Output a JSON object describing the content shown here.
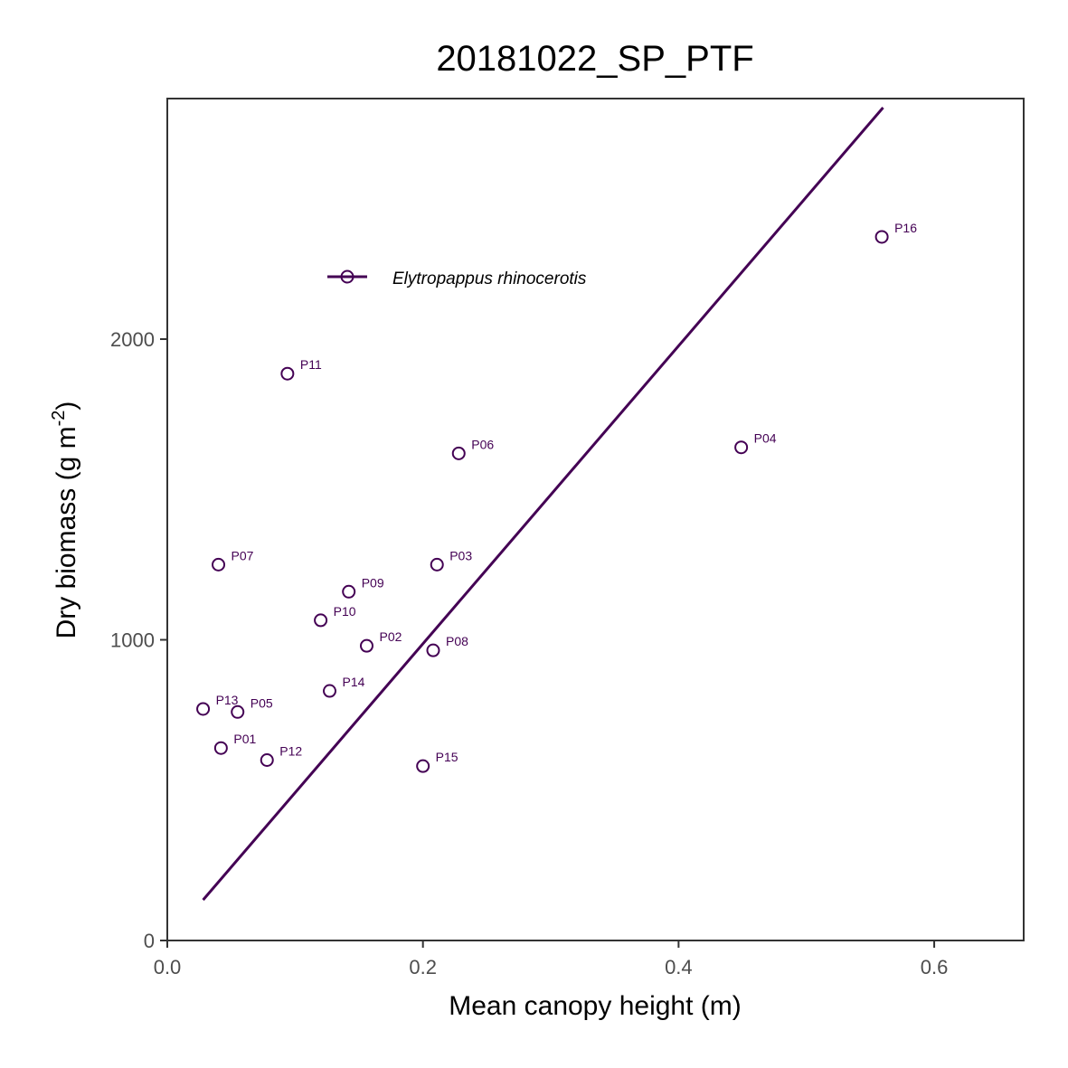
{
  "chart_data": {
    "type": "scatter",
    "title": "20181022_SP_PTF",
    "xlabel": "Mean canopy height (m)",
    "ylabel_main": "Dry biomass (g m",
    "ylabel_sup": "-2",
    "ylabel_end": ")",
    "xlim": [
      0.0,
      0.67
    ],
    "ylim": [
      0,
      2800
    ],
    "xticks": [
      0.0,
      0.2,
      0.4,
      0.6
    ],
    "xtick_labels": [
      "0.0",
      "0.2",
      "0.4",
      "0.6"
    ],
    "yticks": [
      0,
      1000,
      2000
    ],
    "ytick_labels": [
      "0",
      "1000",
      "2000"
    ],
    "grid": false,
    "legend_position": "top-left",
    "series": [
      {
        "name": "Elytropappus rhinocerotis",
        "color": "#440154",
        "points": [
          {
            "label": "P01",
            "x": 0.042,
            "y": 640
          },
          {
            "label": "P02",
            "x": 0.156,
            "y": 980
          },
          {
            "label": "P03",
            "x": 0.211,
            "y": 1250
          },
          {
            "label": "P04",
            "x": 0.449,
            "y": 1640
          },
          {
            "label": "P05",
            "x": 0.055,
            "y": 760
          },
          {
            "label": "P06",
            "x": 0.228,
            "y": 1620
          },
          {
            "label": "P07",
            "x": 0.04,
            "y": 1250
          },
          {
            "label": "P08",
            "x": 0.208,
            "y": 965
          },
          {
            "label": "P09",
            "x": 0.142,
            "y": 1160
          },
          {
            "label": "P10",
            "x": 0.12,
            "y": 1065
          },
          {
            "label": "P11",
            "x": 0.094,
            "y": 1885
          },
          {
            "label": "P12",
            "x": 0.078,
            "y": 600
          },
          {
            "label": "P13",
            "x": 0.028,
            "y": 770
          },
          {
            "label": "P14",
            "x": 0.127,
            "y": 830
          },
          {
            "label": "P15",
            "x": 0.2,
            "y": 580
          },
          {
            "label": "P16",
            "x": 0.559,
            "y": 2340
          }
        ],
        "fit_line": {
          "x": [
            0.028,
            0.56
          ],
          "y": [
            135,
            2770
          ]
        }
      }
    ]
  }
}
